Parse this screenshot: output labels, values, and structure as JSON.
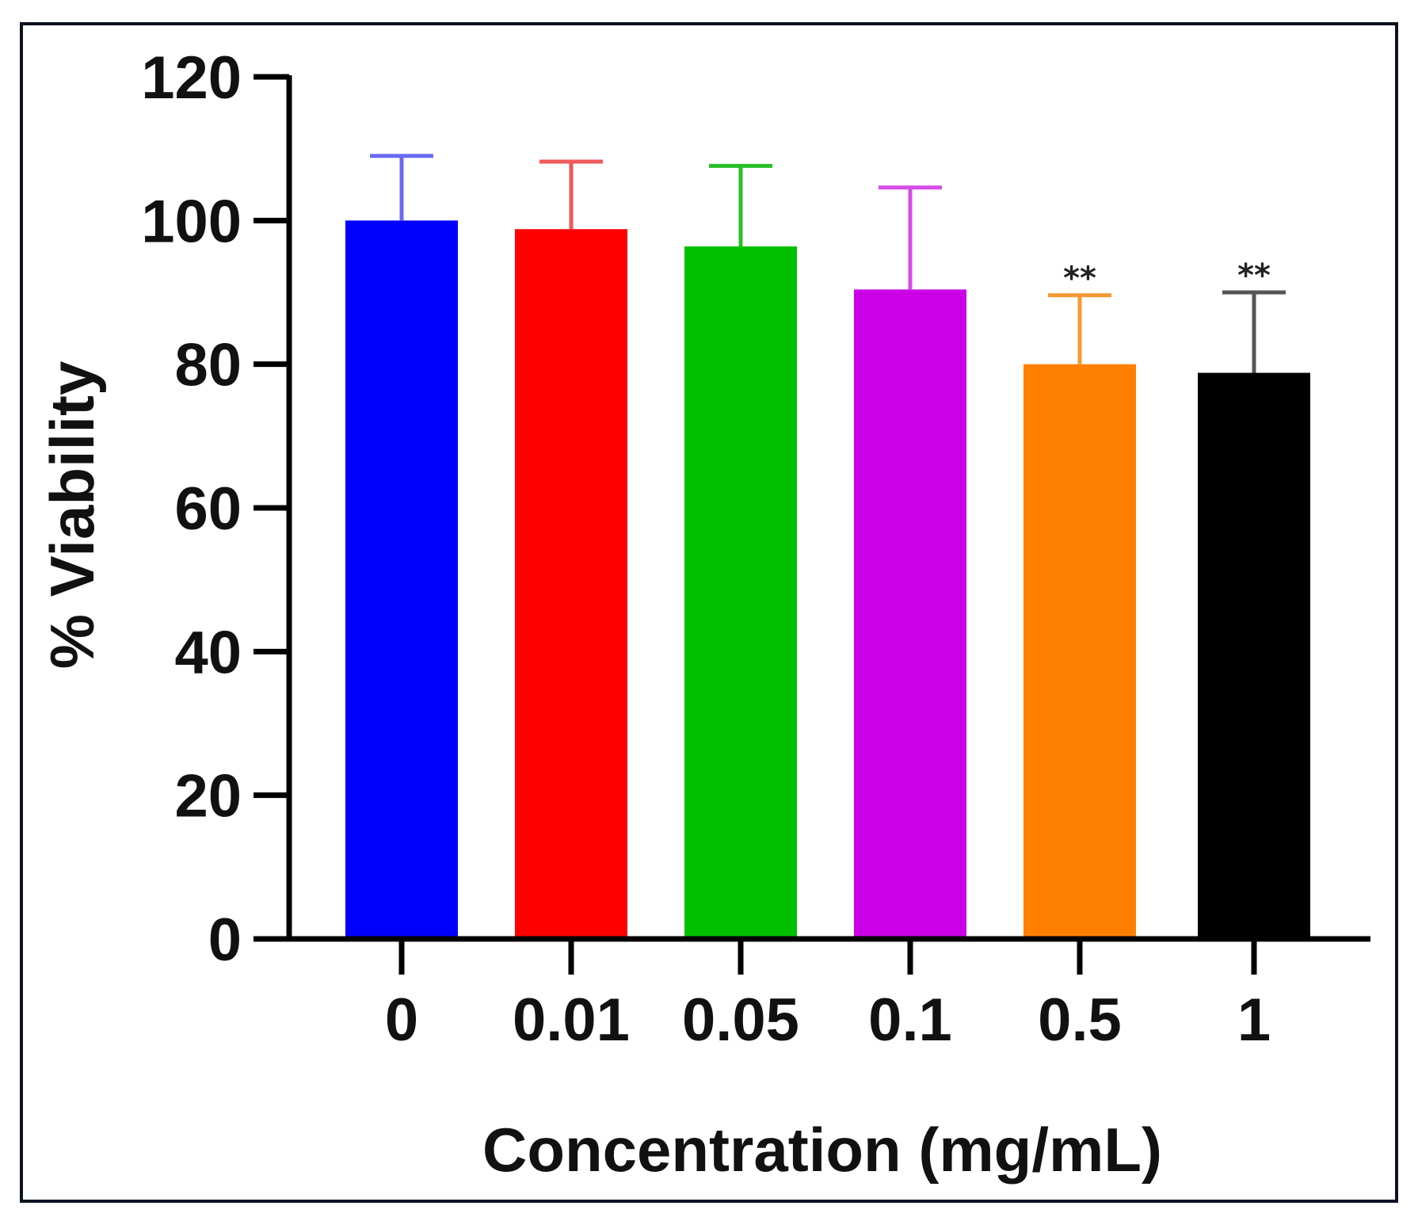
{
  "chart_data": {
    "type": "bar",
    "title": "",
    "xlabel": "Concentration (mg/mL)",
    "ylabel": "% Viability",
    "ylim": [
      0,
      120
    ],
    "yticks": [
      0,
      20,
      40,
      60,
      80,
      100,
      120
    ],
    "categories": [
      "0",
      "0.01",
      "0.05",
      "0.1",
      "0.5",
      "1"
    ],
    "values": [
      100,
      98.8,
      96.4,
      90.4,
      80,
      78.8
    ],
    "error_upper": [
      109,
      108.2,
      107.6,
      104.6,
      89.6,
      90
    ],
    "colors": [
      "#0000ff",
      "#ff0000",
      "#00c000",
      "#cc00e6",
      "#ff8000",
      "#000000"
    ],
    "error_colors": [
      "#6a6af2",
      "#ee5a5a",
      "#28c028",
      "#d64ee6",
      "#f59a33",
      "#555555"
    ],
    "annotations": [
      "",
      "",
      "",
      "",
      "**",
      "**"
    ],
    "grid": false,
    "legend": "none"
  }
}
